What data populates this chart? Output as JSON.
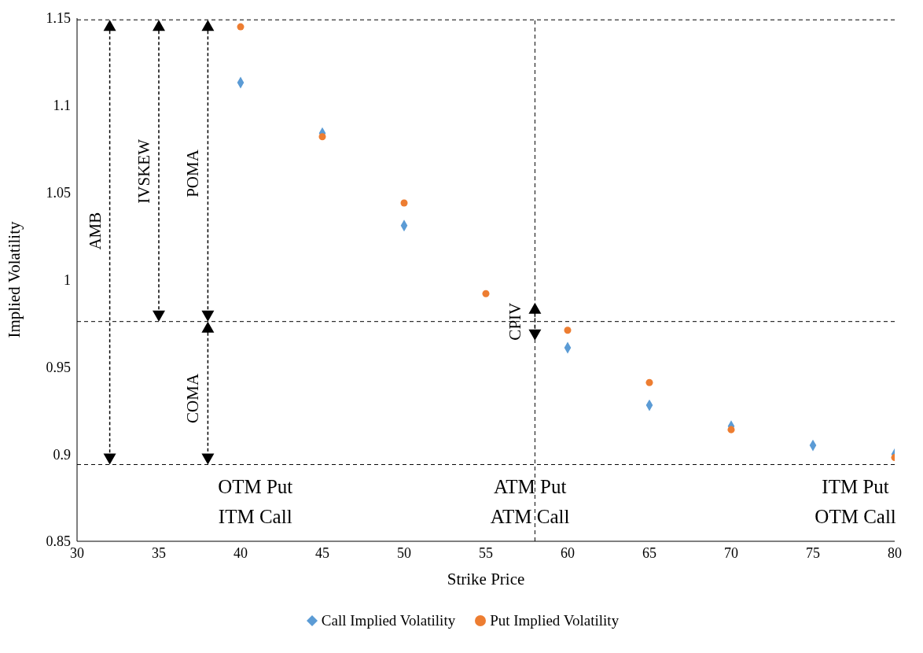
{
  "chart_data": {
    "type": "scatter",
    "xlabel": "Strike Price",
    "ylabel": "Implied Volatility",
    "x": [
      40,
      45,
      50,
      55,
      60,
      65,
      70,
      75,
      80
    ],
    "series": [
      {
        "name": "Call Implied Volatility",
        "color": "#5b9bd5",
        "marker": "diamond",
        "values": [
          1.113,
          1.084,
          1.031,
          null,
          0.961,
          0.928,
          0.916,
          0.905,
          0.9
        ]
      },
      {
        "name": "Put Implied Volatility",
        "color": "#ed7d31",
        "marker": "circle",
        "values": [
          1.145,
          1.082,
          1.044,
          0.992,
          0.971,
          0.941,
          0.914,
          null,
          0.898
        ]
      }
    ],
    "xlim": [
      30,
      80
    ],
    "xticks": [
      30,
      35,
      40,
      45,
      50,
      55,
      60,
      65,
      70,
      75,
      80
    ],
    "ylim": [
      0.85,
      1.15
    ],
    "yticks": [
      0.85,
      0.9,
      0.95,
      1,
      1.05,
      1.1,
      1.15
    ],
    "ref_lines": [
      {
        "axis": "y",
        "value": 1.149,
        "line_style": "dashed"
      },
      {
        "axis": "y",
        "value": 0.976,
        "line_style": "dashed"
      },
      {
        "axis": "y",
        "value": 0.894,
        "line_style": "dashed"
      },
      {
        "axis": "x",
        "value": 58,
        "line_style": "dashed"
      }
    ],
    "annotations": [
      "AMB",
      "IVSKEW",
      "POMA",
      "COMA",
      "CPIV",
      "OTM Put\nITM Call",
      "ATM Put\nATM Call",
      "ITM Put\nOTM Call"
    ],
    "legend": "bottom"
  }
}
